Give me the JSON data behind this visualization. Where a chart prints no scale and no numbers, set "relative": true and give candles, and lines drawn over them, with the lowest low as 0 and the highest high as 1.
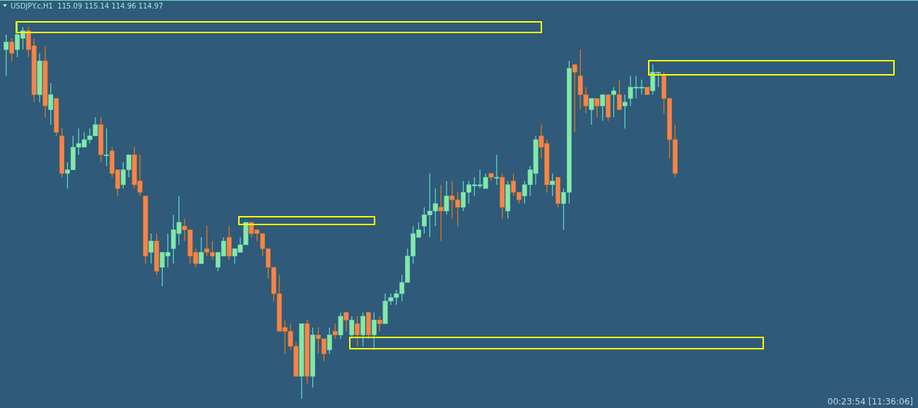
{
  "chart_data": {
    "type": "candlestick",
    "title": "USDJPY.c,H1  115.09 115.14 114.96 114.97",
    "relative": true,
    "categories": [
      null,
      null,
      null,
      null,
      null,
      null,
      null,
      null,
      null,
      null,
      null,
      null,
      null,
      null,
      null,
      null,
      null,
      null,
      null,
      null,
      null,
      null,
      null,
      null,
      null,
      null,
      null,
      null,
      null,
      null,
      null,
      null,
      null,
      null,
      null,
      null,
      null,
      null,
      null,
      null,
      null,
      null,
      null,
      null,
      null,
      null,
      null,
      null,
      null,
      null,
      null,
      null,
      null,
      null,
      null,
      null,
      null,
      null,
      null,
      null,
      null,
      null,
      null,
      null,
      null,
      null,
      null,
      null,
      null,
      null,
      null,
      null,
      null,
      null,
      null,
      null,
      null,
      null,
      null,
      null,
      null,
      null,
      null,
      null,
      null,
      null,
      null,
      null,
      null,
      null,
      null,
      null,
      null,
      null,
      null,
      null,
      null,
      null,
      null,
      null,
      null,
      null,
      null,
      null,
      null,
      null,
      null,
      null,
      null,
      null,
      null,
      null,
      null,
      null,
      null,
      null,
      null,
      null,
      null,
      null,
      null
    ],
    "ohlc": [
      [
        0.93,
        0.97,
        0.86,
        0.95
      ],
      [
        0.95,
        0.96,
        0.9,
        0.92
      ],
      [
        0.93,
        1.0,
        0.91,
        0.97
      ],
      [
        0.96,
        0.99,
        0.93,
        0.98
      ],
      [
        0.98,
        0.99,
        0.91,
        0.93
      ],
      [
        0.94,
        0.96,
        0.79,
        0.81
      ],
      [
        0.81,
        0.92,
        0.79,
        0.9
      ],
      [
        0.9,
        0.94,
        0.75,
        0.78
      ],
      [
        0.77,
        0.84,
        0.73,
        0.81
      ],
      [
        0.8,
        0.8,
        0.7,
        0.71
      ],
      [
        0.7,
        0.72,
        0.59,
        0.6
      ],
      [
        0.6,
        0.63,
        0.56,
        0.61
      ],
      [
        0.61,
        0.7,
        0.61,
        0.67
      ],
      [
        0.67,
        0.72,
        0.65,
        0.68
      ],
      [
        0.67,
        0.71,
        0.67,
        0.69
      ],
      [
        0.69,
        0.72,
        0.68,
        0.7
      ],
      [
        0.7,
        0.75,
        0.7,
        0.73
      ],
      [
        0.73,
        0.75,
        0.63,
        0.65
      ],
      [
        0.65,
        0.72,
        0.62,
        0.65
      ],
      [
        0.66,
        0.67,
        0.59,
        0.6
      ],
      [
        0.61,
        0.61,
        0.54,
        0.56
      ],
      [
        0.57,
        0.63,
        0.56,
        0.61
      ],
      [
        0.61,
        0.65,
        0.59,
        0.65
      ],
      [
        0.65,
        0.67,
        0.56,
        0.57
      ],
      [
        0.58,
        0.65,
        0.54,
        0.55
      ],
      [
        0.54,
        0.54,
        0.36,
        0.38
      ],
      [
        0.39,
        0.44,
        0.36,
        0.42
      ],
      [
        0.42,
        0.44,
        0.33,
        0.34
      ],
      [
        0.35,
        0.39,
        0.3,
        0.39
      ],
      [
        0.38,
        0.44,
        0.35,
        0.39
      ],
      [
        0.4,
        0.49,
        0.36,
        0.45
      ],
      [
        0.44,
        0.54,
        0.41,
        0.47
      ],
      [
        0.46,
        0.48,
        0.42,
        0.45
      ],
      [
        0.45,
        0.45,
        0.36,
        0.38
      ],
      [
        0.39,
        0.4,
        0.35,
        0.36
      ],
      [
        0.36,
        0.43,
        0.36,
        0.39
      ],
      [
        0.4,
        0.46,
        0.38,
        0.39
      ],
      [
        0.39,
        0.42,
        0.37,
        0.38
      ],
      [
        0.35,
        0.39,
        0.34,
        0.39
      ],
      [
        0.38,
        0.43,
        0.38,
        0.42
      ],
      [
        0.43,
        0.46,
        0.37,
        0.38
      ],
      [
        0.38,
        0.4,
        0.36,
        0.4
      ],
      [
        0.39,
        0.43,
        0.39,
        0.41
      ],
      [
        0.41,
        0.47,
        0.41,
        0.47
      ],
      [
        0.47,
        0.47,
        0.43,
        0.44
      ],
      [
        0.45,
        0.45,
        0.42,
        0.44
      ],
      [
        0.44,
        0.44,
        0.38,
        0.4
      ],
      [
        0.4,
        0.4,
        0.32,
        0.35
      ],
      [
        0.35,
        0.35,
        0.26,
        0.28
      ],
      [
        0.28,
        0.33,
        0.18,
        0.18
      ],
      [
        0.19,
        0.21,
        0.12,
        0.18
      ],
      [
        0.18,
        0.2,
        0.13,
        0.14
      ],
      [
        0.14,
        0.15,
        0.06,
        0.06
      ],
      [
        0.06,
        0.2,
        0.0,
        0.2
      ],
      [
        0.2,
        0.21,
        0.04,
        0.06
      ],
      [
        0.06,
        0.19,
        0.03,
        0.17
      ],
      [
        0.17,
        0.19,
        0.12,
        0.16
      ],
      [
        0.16,
        0.16,
        0.1,
        0.12
      ],
      [
        0.13,
        0.19,
        0.12,
        0.17
      ],
      [
        0.18,
        0.2,
        0.16,
        0.17
      ],
      [
        0.17,
        0.23,
        0.16,
        0.22
      ],
      [
        0.23,
        0.23,
        0.18,
        0.21
      ],
      [
        0.17,
        0.22,
        0.16,
        0.21
      ],
      [
        0.2,
        0.22,
        0.14,
        0.17
      ],
      [
        0.17,
        0.23,
        0.14,
        0.22
      ],
      [
        0.23,
        0.23,
        0.16,
        0.17
      ],
      [
        0.17,
        0.23,
        0.13,
        0.21
      ],
      [
        0.21,
        0.22,
        0.18,
        0.2
      ],
      [
        0.2,
        0.28,
        0.2,
        0.26
      ],
      [
        0.26,
        0.28,
        0.25,
        0.27
      ],
      [
        0.27,
        0.29,
        0.25,
        0.28
      ],
      [
        0.28,
        0.33,
        0.26,
        0.31
      ],
      [
        0.31,
        0.4,
        0.31,
        0.38
      ],
      [
        0.38,
        0.46,
        0.36,
        0.44
      ],
      [
        0.43,
        0.47,
        0.43,
        0.45
      ],
      [
        0.46,
        0.51,
        0.44,
        0.49
      ],
      [
        0.49,
        0.6,
        0.43,
        0.5
      ],
      [
        0.5,
        0.56,
        0.46,
        0.52
      ],
      [
        0.51,
        0.57,
        0.42,
        0.5
      ],
      [
        0.5,
        0.58,
        0.49,
        0.54
      ],
      [
        0.54,
        0.58,
        0.48,
        0.53
      ],
      [
        0.53,
        0.55,
        0.46,
        0.51
      ],
      [
        0.51,
        0.58,
        0.5,
        0.55
      ],
      [
        0.55,
        0.58,
        0.52,
        0.57
      ],
      [
        0.57,
        0.59,
        0.54,
        0.57
      ],
      [
        0.57,
        0.61,
        0.56,
        0.57
      ],
      [
        0.56,
        0.6,
        0.56,
        0.59
      ],
      [
        0.6,
        0.6,
        0.58,
        0.59
      ],
      [
        0.59,
        0.65,
        0.57,
        0.59
      ],
      [
        0.59,
        0.6,
        0.48,
        0.51
      ],
      [
        0.5,
        0.58,
        0.48,
        0.57
      ],
      [
        0.58,
        0.6,
        0.54,
        0.55
      ],
      [
        0.55,
        0.55,
        0.52,
        0.53
      ],
      [
        0.54,
        0.58,
        0.52,
        0.57
      ],
      [
        0.57,
        0.62,
        0.54,
        0.61
      ],
      [
        0.6,
        0.7,
        0.57,
        0.69
      ],
      [
        0.7,
        0.73,
        0.64,
        0.67
      ],
      [
        0.68,
        0.69,
        0.55,
        0.57
      ],
      [
        0.57,
        0.6,
        0.54,
        0.58
      ],
      [
        0.59,
        0.59,
        0.51,
        0.52
      ],
      [
        0.52,
        0.56,
        0.45,
        0.55
      ],
      [
        0.55,
        0.9,
        0.52,
        0.88
      ],
      [
        0.89,
        0.89,
        0.71,
        0.87
      ],
      [
        0.86,
        0.93,
        0.77,
        0.81
      ],
      [
        0.81,
        0.83,
        0.76,
        0.78
      ],
      [
        0.77,
        0.8,
        0.73,
        0.8
      ],
      [
        0.8,
        0.8,
        0.75,
        0.78
      ],
      [
        0.78,
        0.81,
        0.74,
        0.81
      ],
      [
        0.81,
        0.81,
        0.74,
        0.75
      ],
      [
        0.81,
        0.83,
        0.75,
        0.82
      ],
      [
        0.81,
        0.85,
        0.77,
        0.77
      ],
      [
        0.78,
        0.81,
        0.72,
        0.79
      ],
      [
        0.8,
        0.86,
        0.78,
        0.83
      ],
      [
        0.83,
        0.86,
        0.8,
        0.83
      ],
      [
        0.83,
        0.85,
        0.81,
        0.83
      ],
      [
        0.83,
        0.83,
        0.81,
        0.81
      ],
      [
        0.82,
        0.89,
        0.81,
        0.87
      ],
      [
        0.87,
        0.87,
        0.83,
        0.87
      ],
      [
        0.86,
        0.87,
        0.76,
        0.8
      ],
      [
        0.8,
        0.8,
        0.64,
        0.69
      ],
      [
        0.69,
        0.73,
        0.59,
        0.6
      ]
    ],
    "annotations": [
      "00:23:54 [11:36:06]"
    ]
  }
}
